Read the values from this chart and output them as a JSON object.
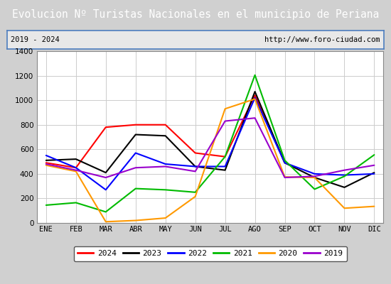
{
  "title": "Evolucion Nº Turistas Nacionales en el municipio de Periana",
  "subtitle_left": "2019 - 2024",
  "subtitle_right": "http://www.foro-ciudad.com",
  "months": [
    "ENE",
    "FEB",
    "MAR",
    "ABR",
    "MAY",
    "JUN",
    "JUL",
    "AGO",
    "SEP",
    "OCT",
    "NOV",
    "DIC"
  ],
  "series": {
    "2024": [
      490,
      450,
      780,
      800,
      800,
      570,
      540,
      1040,
      490,
      null,
      null,
      null
    ],
    "2023": [
      510,
      520,
      410,
      720,
      710,
      460,
      430,
      1070,
      490,
      370,
      290,
      410
    ],
    "2022": [
      550,
      450,
      270,
      570,
      480,
      460,
      460,
      1020,
      490,
      400,
      390,
      400
    ],
    "2021": [
      145,
      165,
      90,
      280,
      270,
      250,
      540,
      1205,
      510,
      275,
      380,
      555
    ],
    "2020": [
      470,
      420,
      10,
      20,
      40,
      215,
      930,
      1010,
      375,
      370,
      120,
      135
    ],
    "2019": [
      480,
      430,
      370,
      450,
      460,
      420,
      830,
      855,
      370,
      380,
      430,
      470
    ]
  },
  "colors": {
    "2024": "#ff0000",
    "2023": "#000000",
    "2022": "#0000ff",
    "2021": "#00bb00",
    "2020": "#ff9900",
    "2019": "#9900cc"
  },
  "ylim": [
    0,
    1400
  ],
  "yticks": [
    0,
    200,
    400,
    600,
    800,
    1000,
    1200,
    1400
  ],
  "title_bg": "#4d7ebf",
  "title_color": "#ffffff",
  "title_fontsize": 10.5,
  "label_fontsize": 7.5,
  "tick_fontsize": 7.5,
  "bg_color": "#d0d0d0",
  "plot_bg": "#e8e8e8",
  "chart_bg": "#ffffff",
  "grid_color": "#cccccc",
  "subtitle_border": "#4d7ebf"
}
